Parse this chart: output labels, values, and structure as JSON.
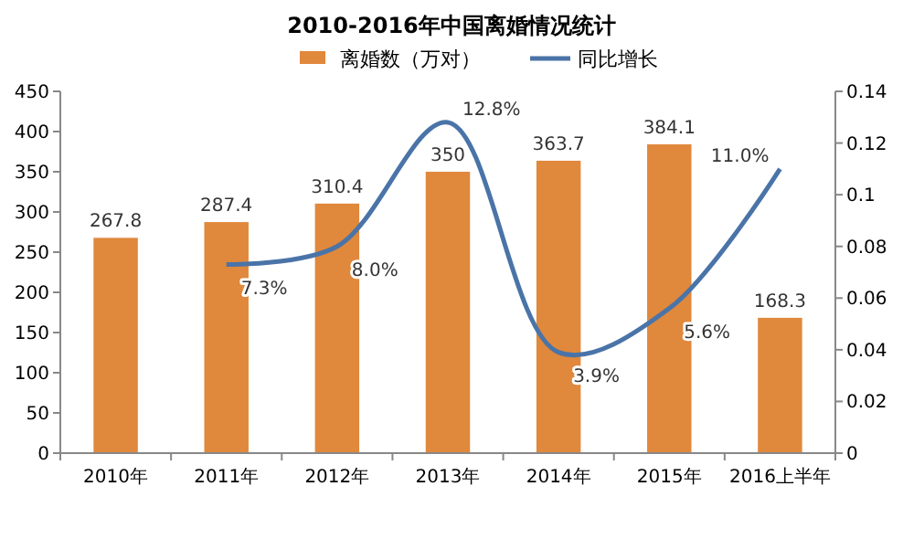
{
  "chart_data": {
    "type": "bar",
    "title": "2010-2016年中国离婚情况统计",
    "categories": [
      "2010年",
      "2011年",
      "2012年",
      "2013年",
      "2014年",
      "2015年",
      "2016上半年"
    ],
    "series": [
      {
        "name": "离婚数（万对）",
        "color": "#e0883c",
        "values": [
          267.8,
          287.4,
          310.4,
          350,
          363.7,
          384.1,
          168.3
        ],
        "value_labels": [
          "267.8",
          "287.4",
          "310.4",
          "350",
          "363.7",
          "384.1",
          "168.3"
        ]
      },
      {
        "name": "同比增长",
        "type": "line",
        "axis": "y2",
        "color": "#4a74a8",
        "values": [
          null,
          0.073,
          0.08,
          0.128,
          0.039,
          0.056,
          0.11
        ],
        "value_labels": [
          null,
          "7.3%",
          "8.0%",
          "12.8%",
          "3.9%",
          "5.6%",
          "11.0%"
        ]
      }
    ],
    "ylim": [
      0,
      450
    ],
    "yticks": [
      0,
      50,
      100,
      150,
      200,
      250,
      300,
      350,
      400,
      450
    ],
    "y2lim": [
      0,
      0.14
    ],
    "y2ticks": [
      0,
      0.02,
      0.04,
      0.06,
      0.08,
      0.1,
      0.12,
      0.14
    ],
    "grid": false,
    "legend": "top",
    "marker": "none",
    "line_style": "solid"
  }
}
